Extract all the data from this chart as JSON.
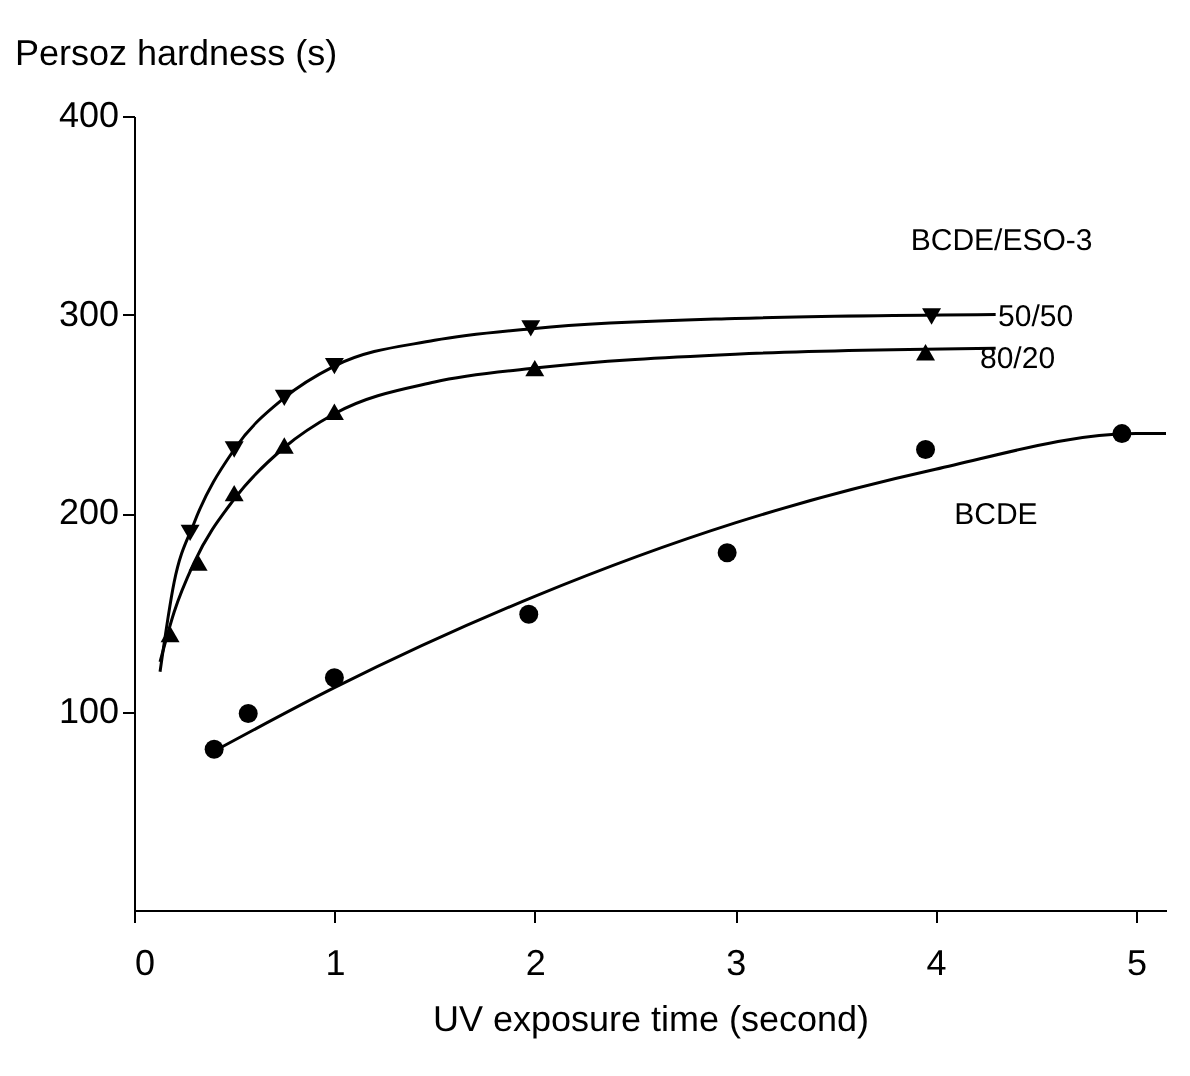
{
  "chart_data": {
    "type": "scatter",
    "xlabel": "UV exposure time (second)",
    "ylabel": "Persoz hardness (s)",
    "legend_title": "BCDE/ESO-3",
    "xlim": [
      0,
      5.15
    ],
    "xticks": [
      0,
      1,
      2,
      3,
      4,
      5
    ],
    "ylim": [
      0,
      400
    ],
    "yticks": [
      100,
      200,
      300,
      400
    ],
    "grid": false,
    "legend": false,
    "series": [
      {
        "name": "50/50",
        "color": "#000000",
        "marker": "triangle-down",
        "x": [
          0.28,
          0.5,
          0.75,
          1.0,
          1.98,
          3.98
        ],
        "values": [
          190,
          232,
          258,
          274,
          293,
          299
        ]
      },
      {
        "name": "80/20",
        "color": "#000000",
        "marker": "triangle",
        "x": [
          0.18,
          0.32,
          0.5,
          0.75,
          1.0,
          2.0,
          3.95
        ],
        "values": [
          139,
          175,
          210,
          234,
          251,
          273,
          281
        ]
      },
      {
        "name": "BCDE",
        "color": "#000000",
        "marker": "circle",
        "x": [
          0.4,
          0.57,
          1.0,
          1.97,
          2.96,
          3.95,
          4.93
        ],
        "values": [
          81,
          99,
          117,
          149,
          180,
          232,
          240
        ]
      },
      {
        "type": "line",
        "color": "#000000",
        "marker": "none",
        "x": [
          0.13,
          0.2,
          0.3,
          0.5,
          0.75,
          1,
          1.5,
          2,
          3,
          4.3
        ],
        "values": [
          120,
          165,
          195,
          232,
          258,
          274,
          287,
          293,
          298,
          300
        ]
      },
      {
        "type": "line",
        "color": "#000000",
        "marker": "none",
        "x": [
          0.13,
          0.2,
          0.3,
          0.5,
          0.75,
          1,
          1.5,
          2,
          3,
          4.3
        ],
        "values": [
          125,
          150,
          175,
          207,
          233,
          250,
          266,
          273,
          280,
          283
        ]
      },
      {
        "type": "line",
        "color": "#000000",
        "marker": "none",
        "x": [
          0.4,
          1,
          2,
          3,
          4,
          5,
          5.15
        ],
        "values": [
          80,
          112,
          158,
          195,
          222,
          240,
          240
        ]
      }
    ]
  }
}
